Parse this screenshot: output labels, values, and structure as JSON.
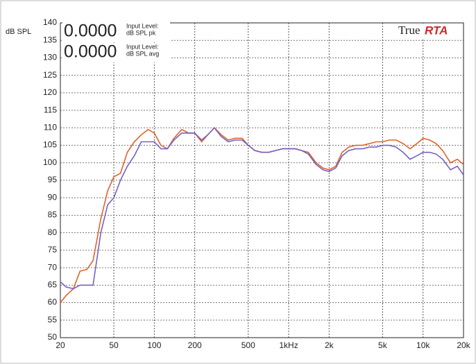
{
  "chart_data": {
    "type": "line",
    "y_label": "dB SPL",
    "readouts": [
      {
        "value": "0.0000",
        "label1": "Input Level:",
        "label2": "dB SPL pk"
      },
      {
        "value": "0.0000",
        "label1": "Input Level:",
        "label2": "dB SPL avg"
      }
    ],
    "logo": {
      "true": "True",
      "rta": "RTA"
    },
    "xscale": "log",
    "xlim": [
      20,
      20000
    ],
    "xticks": [
      20,
      50,
      100,
      200,
      500,
      {
        "value": 1000,
        "label": "1kHz"
      },
      {
        "value": 2000,
        "label": "2k"
      },
      {
        "value": 5000,
        "label": "5k"
      },
      {
        "value": 10000,
        "label": "10k"
      },
      {
        "value": 20000,
        "label": "20k"
      }
    ],
    "ylim": [
      50,
      140
    ],
    "yticks": [
      50,
      55,
      60,
      65,
      70,
      75,
      80,
      85,
      90,
      95,
      100,
      105,
      110,
      115,
      120,
      125,
      130,
      135,
      140
    ],
    "grid": true,
    "x": [
      20,
      22,
      25,
      28,
      31.5,
      35,
      40,
      45,
      50,
      56,
      63,
      71,
      80,
      90,
      100,
      112,
      125,
      140,
      160,
      180,
      200,
      225,
      250,
      280,
      315,
      355,
      400,
      450,
      500,
      560,
      630,
      710,
      800,
      900,
      1000,
      1120,
      1250,
      1400,
      1600,
      1800,
      2000,
      2240,
      2500,
      2800,
      3150,
      3550,
      4000,
      4500,
      5000,
      5600,
      6300,
      7100,
      8000,
      9000,
      10000,
      11200,
      12500,
      14000,
      16000,
      18000,
      20000
    ],
    "series": [
      {
        "color": "#e0622a",
        "values": [
          60,
          62,
          64,
          69,
          69.5,
          72,
          84,
          92,
          96,
          97,
          103,
          106,
          108,
          109.5,
          108.5,
          105,
          104,
          107,
          109.5,
          108.5,
          108.5,
          106,
          108,
          110,
          108,
          106.5,
          107,
          107,
          105,
          103.5,
          103,
          103,
          103.5,
          104,
          104,
          104,
          103.5,
          103,
          100,
          98.5,
          98,
          99,
          103,
          104.5,
          105,
          105,
          105.5,
          106,
          106,
          106.5,
          106.5,
          105.5,
          104,
          105.5,
          107,
          106.5,
          105.5,
          103.5,
          100,
          101,
          99.5
        ]
      },
      {
        "color": "#7860c0",
        "values": [
          66,
          64.5,
          64,
          65,
          65,
          65,
          80,
          88,
          90,
          95,
          99,
          102,
          106,
          106,
          106,
          104,
          104,
          106.5,
          108.5,
          108.5,
          108.5,
          106.5,
          108,
          110,
          107.5,
          106,
          106.5,
          106.5,
          105,
          103.5,
          103,
          103,
          103.5,
          104,
          104,
          104,
          103.5,
          102.5,
          99.5,
          98,
          97.5,
          98.5,
          102,
          103.5,
          104,
          104,
          104.5,
          104.5,
          105,
          105,
          104.5,
          103,
          101,
          102,
          103,
          103,
          102.5,
          101,
          98,
          99,
          96.5
        ]
      }
    ]
  }
}
